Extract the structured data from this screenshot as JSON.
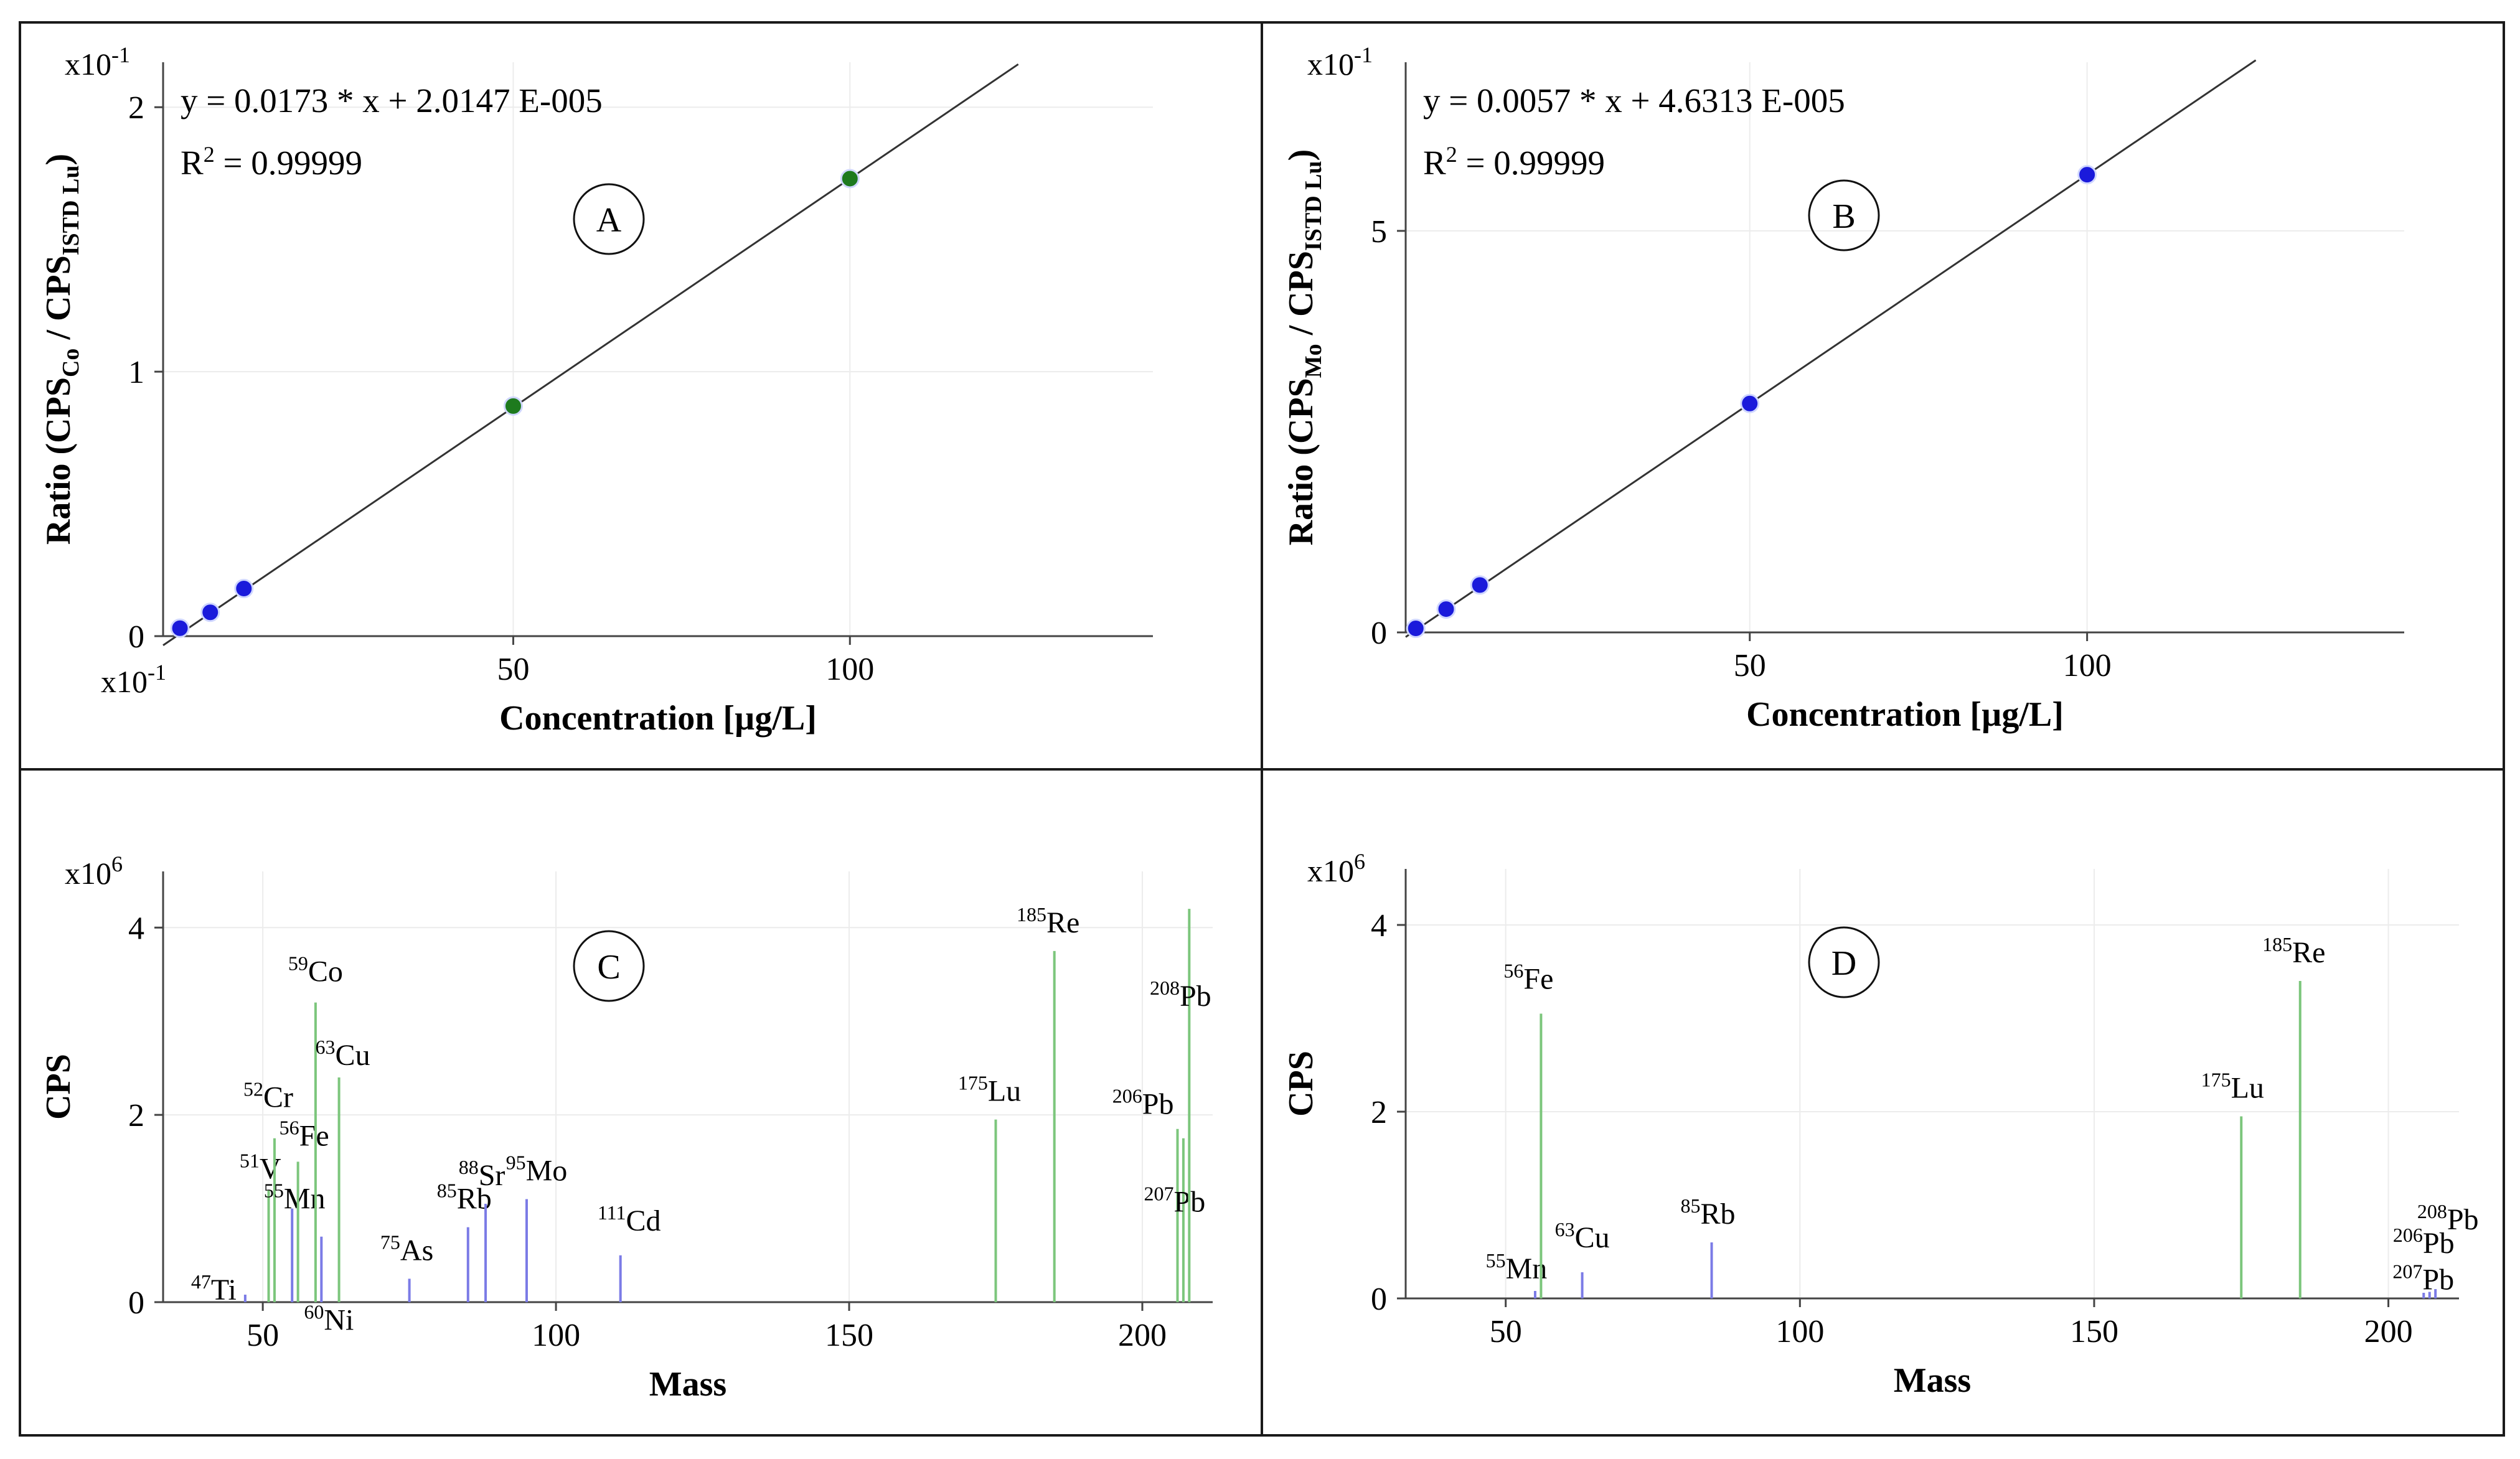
{
  "chart_data": [
    {
      "id": "A",
      "type": "scatter",
      "panel_label": "A",
      "equation": "y = 0.0173 * x + 2.0147 E-005",
      "r2_label": "R",
      "r2_value": "= 0.99999",
      "ylabel_parts": [
        "Ratio (CPS",
        "Co",
        " / CPS",
        "ISTD Lu",
        ")"
      ],
      "xlabel": "Concentration [µg/L]",
      "y_multiplier": "x10",
      "y_multiplier_exp": "-1",
      "x_multiplier": "x10",
      "x_multiplier_exp": "-1",
      "xlim": [
        -2,
        145
      ],
      "ylim": [
        0,
        2.17
      ],
      "x_ticks": [
        50,
        100
      ],
      "y_ticks": [
        0,
        1,
        2
      ],
      "fit": {
        "slope": 0.0173,
        "intercept": 0.0,
        "x_range": [
          -2,
          125
        ]
      },
      "points": [
        {
          "x": 0.5,
          "y": 0.03,
          "color": "#1a1adb"
        },
        {
          "x": 5,
          "y": 0.09,
          "color": "#1a1adb"
        },
        {
          "x": 10,
          "y": 0.18,
          "color": "#1a1adb"
        },
        {
          "x": 50,
          "y": 0.87,
          "color": "#1e7a1e"
        },
        {
          "x": 100,
          "y": 1.73,
          "color": "#1e7a1e"
        }
      ]
    },
    {
      "id": "B",
      "type": "scatter",
      "panel_label": "B",
      "equation": "y = 0.0057 * x + 4.6313 E-005",
      "r2_label": "R",
      "r2_value": "= 0.99999",
      "ylabel_parts": [
        "Ratio (CPS",
        "Mo",
        " / CPS",
        "ISTD Lu",
        ")"
      ],
      "xlabel": "Concentration [µg/L]",
      "y_multiplier": "x10",
      "y_multiplier_exp": "-1",
      "xlim": [
        -1,
        147
      ],
      "ylim": [
        0,
        7.1
      ],
      "x_ticks": [
        50,
        100
      ],
      "y_ticks": [
        0,
        5
      ],
      "fit": {
        "slope": 0.057,
        "intercept": 0.0,
        "x_range": [
          -1,
          125
        ]
      },
      "points": [
        {
          "x": 0.5,
          "y": 0.05,
          "color": "#1a1adb"
        },
        {
          "x": 5,
          "y": 0.29,
          "color": "#1a1adb"
        },
        {
          "x": 10,
          "y": 0.59,
          "color": "#1a1adb"
        },
        {
          "x": 50,
          "y": 2.85,
          "color": "#1a1adb"
        },
        {
          "x": 100,
          "y": 5.7,
          "color": "#1a1adb"
        }
      ]
    },
    {
      "id": "C",
      "type": "bar",
      "panel_label": "C",
      "xlabel": "Mass",
      "ylabel": "CPS",
      "y_multiplier": "x10",
      "y_multiplier_exp": "6",
      "xlim": [
        33,
        212
      ],
      "ylim": [
        0,
        4.6
      ],
      "x_ticks": [
        50,
        100,
        150,
        200
      ],
      "y_ticks": [
        0,
        2,
        4
      ],
      "peaks": [
        {
          "mass": 47,
          "value": 0.08,
          "color": "#7b7be6",
          "iso": "47",
          "el": "Ti"
        },
        {
          "mass": 51,
          "value": 1.2,
          "color": "#7cc67c",
          "iso": "51",
          "el": "V"
        },
        {
          "mass": 52,
          "value": 1.75,
          "color": "#7cc67c",
          "iso": "52",
          "el": "Cr"
        },
        {
          "mass": 55,
          "value": 1.0,
          "color": "#7b7be6",
          "iso": "55",
          "el": "Mn"
        },
        {
          "mass": 56,
          "value": 1.5,
          "color": "#7cc67c",
          "iso": "56",
          "el": "Fe"
        },
        {
          "mass": 59,
          "value": 3.2,
          "color": "#7cc67c",
          "iso": "59",
          "el": "Co"
        },
        {
          "mass": 60,
          "value": 0.7,
          "color": "#7b7be6",
          "iso": "60",
          "el": "Ni"
        },
        {
          "mass": 63,
          "value": 2.4,
          "color": "#7cc67c",
          "iso": "63",
          "el": "Cu"
        },
        {
          "mass": 75,
          "value": 0.25,
          "color": "#7b7be6",
          "iso": "75",
          "el": "As"
        },
        {
          "mass": 85,
          "value": 0.8,
          "color": "#7b7be6",
          "iso": "85",
          "el": "Rb"
        },
        {
          "mass": 88,
          "value": 1.05,
          "color": "#7b7be6",
          "iso": "88",
          "el": "Sr"
        },
        {
          "mass": 95,
          "value": 1.1,
          "color": "#7b7be6",
          "iso": "95",
          "el": "Mo"
        },
        {
          "mass": 111,
          "value": 0.5,
          "color": "#7b7be6",
          "iso": "111",
          "el": "Cd"
        },
        {
          "mass": 175,
          "value": 1.95,
          "color": "#7cc67c",
          "iso": "175",
          "el": "Lu"
        },
        {
          "mass": 185,
          "value": 3.75,
          "color": "#7cc67c",
          "iso": "185",
          "el": "Re"
        },
        {
          "mass": 206,
          "value": 1.85,
          "color": "#7cc67c",
          "iso": "206",
          "el": "Pb"
        },
        {
          "mass": 207,
          "value": 1.75,
          "color": "#7cc67c",
          "iso": "207",
          "el": "Pb"
        },
        {
          "mass": 208,
          "value": 4.2,
          "color": "#7cc67c",
          "iso": "208",
          "el": "Pb"
        }
      ]
    },
    {
      "id": "D",
      "type": "bar",
      "panel_label": "D",
      "xlabel": "Mass",
      "ylabel": "CPS",
      "y_multiplier": "x10",
      "y_multiplier_exp": "6",
      "xlim": [
        33,
        212
      ],
      "ylim": [
        0,
        4.6
      ],
      "x_ticks": [
        50,
        100,
        150,
        200
      ],
      "y_ticks": [
        0,
        2,
        4
      ],
      "peaks": [
        {
          "mass": 55,
          "value": 0.08,
          "color": "#7b7be6",
          "iso": "55",
          "el": "Mn"
        },
        {
          "mass": 56,
          "value": 3.05,
          "color": "#7cc67c",
          "iso": "56",
          "el": "Fe"
        },
        {
          "mass": 63,
          "value": 0.28,
          "color": "#7b7be6",
          "iso": "63",
          "el": "Cu"
        },
        {
          "mass": 85,
          "value": 0.6,
          "color": "#7b7be6",
          "iso": "85",
          "el": "Rb"
        },
        {
          "mass": 175,
          "value": 1.95,
          "color": "#7cc67c",
          "iso": "175",
          "el": "Lu"
        },
        {
          "mass": 185,
          "value": 3.4,
          "color": "#7cc67c",
          "iso": "185",
          "el": "Re"
        },
        {
          "mass": 206,
          "value": 0.06,
          "color": "#7b7be6",
          "iso": "206",
          "el": "Pb"
        },
        {
          "mass": 207,
          "value": 0.07,
          "color": "#7b7be6",
          "iso": "207",
          "el": "Pb"
        },
        {
          "mass": 208,
          "value": 0.1,
          "color": "#7b7be6",
          "iso": "208",
          "el": "Pb"
        }
      ]
    }
  ]
}
